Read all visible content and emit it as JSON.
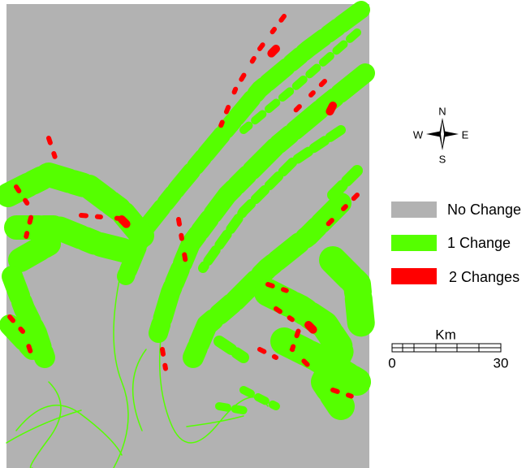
{
  "compass": {
    "north": "N",
    "east": "E",
    "south": "S",
    "west": "W"
  },
  "legend": [
    {
      "label": "No Change",
      "color": "#b2b2b2"
    },
    {
      "label": "1 Change",
      "color": "#55ff00"
    },
    {
      "label": "2 Changes",
      "color": "#ff0000"
    }
  ],
  "scale_bar": {
    "unit": "Km",
    "start": "0",
    "end": "30"
  }
}
